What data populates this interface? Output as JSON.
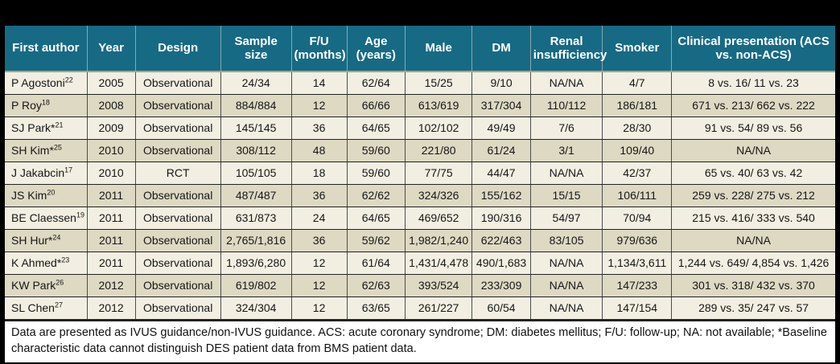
{
  "colors": {
    "header_bg": "#176a84",
    "header_text": "#ffffff",
    "row_odd_bg": "#f2efe2",
    "row_even_bg": "#ddd9c3",
    "header_underline": "#b3a080",
    "page_bg": "#000000"
  },
  "table": {
    "columns": [
      {
        "label": "First author",
        "width": "9.9%"
      },
      {
        "label": "Year",
        "width": "5.8%"
      },
      {
        "label": "Design",
        "width": "10.3%"
      },
      {
        "label": "Sample size",
        "width": "8.5%"
      },
      {
        "label": "F/U (months)",
        "width": "6.7%"
      },
      {
        "label": "Age (years)",
        "width": "7.0%"
      },
      {
        "label": "Male",
        "width": "8.1%"
      },
      {
        "label": "DM",
        "width": "7.0%"
      },
      {
        "label": "Renal insufficiency",
        "width": "8.7%"
      },
      {
        "label": "Smoker",
        "width": "8.3%"
      },
      {
        "label": "Clinical presentation (ACS vs. non-ACS)",
        "width": "19.7%"
      }
    ],
    "rows": [
      {
        "author": "P Agostoni",
        "ref": "22",
        "year": "2005",
        "design": "Observational",
        "sample": "24/34",
        "fu": "14",
        "age": "62/64",
        "male": "15/25",
        "dm": "9/10",
        "renal": "NA/NA",
        "smoker": "4/7",
        "clinical": "8 vs. 16/ 11 vs. 23"
      },
      {
        "author": "P Roy",
        "ref": "18",
        "year": "2008",
        "design": "Observational",
        "sample": "884/884",
        "fu": "12",
        "age": "66/66",
        "male": "613/619",
        "dm": "317/304",
        "renal": "110/112",
        "smoker": "186/181",
        "clinical": "671 vs. 213/ 662 vs. 222"
      },
      {
        "author": "SJ Park*",
        "ref": "21",
        "year": "2009",
        "design": "Observational",
        "sample": "145/145",
        "fu": "36",
        "age": "64/65",
        "male": "102/102",
        "dm": "49/49",
        "renal": "7/6",
        "smoker": "28/30",
        "clinical": "91 vs. 54/ 89 vs. 56"
      },
      {
        "author": "SH Kim*",
        "ref": "25",
        "year": "2010",
        "design": "Observational",
        "sample": "308/112",
        "fu": "48",
        "age": "59/60",
        "male": "221/80",
        "dm": "61/24",
        "renal": "3/1",
        "smoker": "109/40",
        "clinical": "NA/NA"
      },
      {
        "author": "J Jakabcin",
        "ref": "17",
        "year": "2010",
        "design": "RCT",
        "sample": "105/105",
        "fu": "18",
        "age": "59/60",
        "male": "77/75",
        "dm": "44/47",
        "renal": "NA/NA",
        "smoker": "42/37",
        "clinical": "65 vs. 40/ 63 vs. 42"
      },
      {
        "author": "JS Kim",
        "ref": "20",
        "year": "2011",
        "design": "Observational",
        "sample": "487/487",
        "fu": "36",
        "age": "62/62",
        "male": "324/326",
        "dm": "155/162",
        "renal": "15/15",
        "smoker": "106/111",
        "clinical": "259 vs. 228/ 275 vs. 212"
      },
      {
        "author": "BE Claessen",
        "ref": "19",
        "year": "2011",
        "design": "Observational",
        "sample": "631/873",
        "fu": "24",
        "age": "64/65",
        "male": "469/652",
        "dm": "190/316",
        "renal": "54/97",
        "smoker": "70/94",
        "clinical": "215 vs. 416/ 333 vs. 540"
      },
      {
        "author": "SH Hur*",
        "ref": "24",
        "year": "2011",
        "design": "Observational",
        "sample": "2,765/1,816",
        "fu": "36",
        "age": "59/62",
        "male": "1,982/1,240",
        "dm": "622/463",
        "renal": "83/105",
        "smoker": "979/636",
        "clinical": "NA/NA"
      },
      {
        "author": "K Ahmed*",
        "ref": "23",
        "year": "2011",
        "design": "Observational",
        "sample": "1,893/6,280",
        "fu": "12",
        "age": "61/64",
        "male": "1,431/4,478",
        "dm": "490/1,683",
        "renal": "NA/NA",
        "smoker": "1,134/3,611",
        "clinical": "1,244 vs. 649/ 4,854 vs. 1,426"
      },
      {
        "author": "KW Park",
        "ref": "26",
        "year": "2012",
        "design": "Observational",
        "sample": "619/802",
        "fu": "12",
        "age": "62/63",
        "male": "393/524",
        "dm": "233/309",
        "renal": "NA/NA",
        "smoker": "147/233",
        "clinical": "301 vs. 318/ 432 vs. 370"
      },
      {
        "author": "SL Chen",
        "ref": "27",
        "year": "2012",
        "design": "Observational",
        "sample": "324/304",
        "fu": "12",
        "age": "63/65",
        "male": "261/227",
        "dm": "60/54",
        "renal": "NA/NA",
        "smoker": "147/154",
        "clinical": "289 vs. 35/ 247 vs. 57"
      }
    ],
    "footnote": "Data are presented as IVUS guidance/non-IVUS guidance. ACS: acute coronary syndrome; DM: diabetes mellitus; F/U: follow-up; NA: not available; *Baseline characteristic data cannot distinguish DES patient data from BMS patient data."
  }
}
